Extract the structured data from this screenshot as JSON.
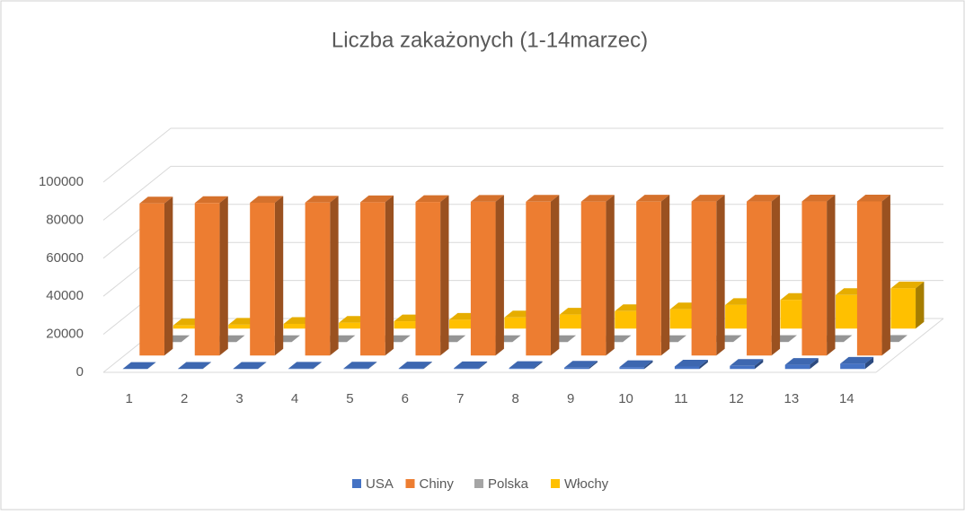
{
  "chart_data": {
    "type": "bar3d",
    "title": "Liczba zakażonych (1-14marzec)",
    "categories": [
      "1",
      "2",
      "3",
      "4",
      "5",
      "6",
      "7",
      "8",
      "9",
      "10",
      "11",
      "12",
      "13",
      "14"
    ],
    "series": [
      {
        "name": "USA",
        "color": "#4472c4",
        "values": [
          75,
          100,
          124,
          158,
          221,
          319,
          435,
          541,
          704,
          994,
          1301,
          1630,
          2183,
          2770
        ]
      },
      {
        "name": "Chiny",
        "color": "#ed7d31",
        "values": [
          79968,
          80174,
          80303,
          80424,
          80581,
          80734,
          80815,
          80868,
          80905,
          80932,
          80969,
          80981,
          80995,
          81029
        ]
      },
      {
        "name": "Polska",
        "color": "#a5a5a5",
        "values": [
          0,
          0,
          0,
          1,
          1,
          5,
          11,
          16,
          17,
          22,
          31,
          49,
          68,
          103
        ]
      },
      {
        "name": "Włochy",
        "color": "#ffc000",
        "values": [
          1694,
          2036,
          2502,
          3089,
          3858,
          4636,
          5883,
          7375,
          9172,
          10149,
          12462,
          15113,
          17660,
          21157
        ]
      }
    ],
    "ylim": [
      0,
      100000
    ],
    "yticks": [
      0,
      20000,
      40000,
      60000,
      80000,
      100000
    ],
    "grid": true,
    "legend": "bottom"
  }
}
